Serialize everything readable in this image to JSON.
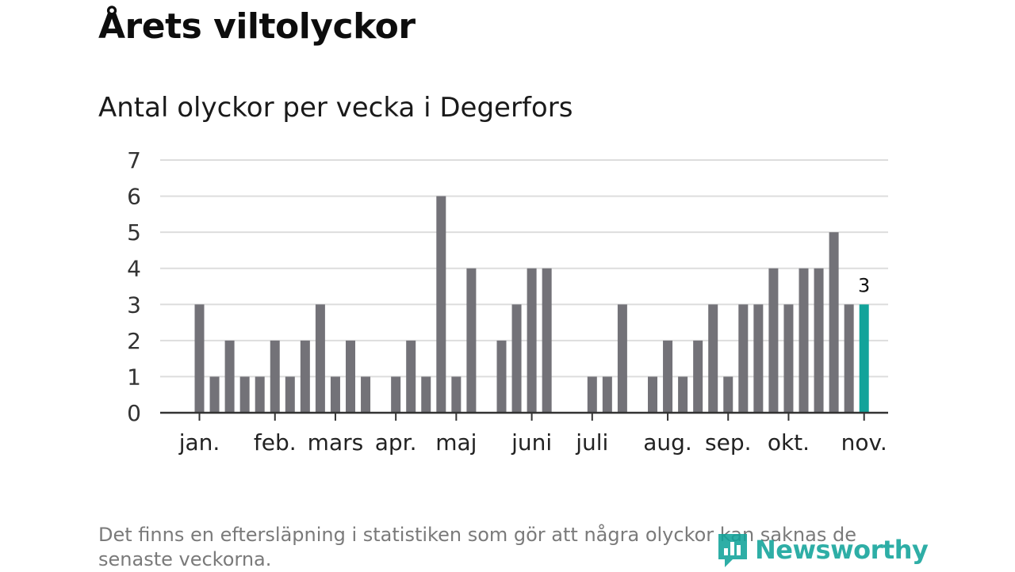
{
  "title": "Årets viltolyckor",
  "subtitle": "Antal olyckor per vecka i Degerfors",
  "footnote": "Det finns en eftersläpning i statistiken som gör att några olyckor kan saknas de senaste veckorna.",
  "brand": {
    "name": "Newsworthy",
    "color": "#12a39a",
    "icon": "chart-logo-icon"
  },
  "colors": {
    "bar": "#737278",
    "highlight": "#12a39a",
    "grid": "#dddddd",
    "axis": "#333333"
  },
  "chart_data": {
    "type": "bar",
    "ylim": [
      0,
      7
    ],
    "yticks": [
      0,
      1,
      2,
      3,
      4,
      5,
      6,
      7
    ],
    "grid": true,
    "legend": "none",
    "x": [
      "2023-01-02",
      "2023-01-09",
      "2023-01-16",
      "2023-01-23",
      "2023-01-30",
      "2023-02-06",
      "2023-02-13",
      "2023-02-20",
      "2023-02-27",
      "2023-03-06",
      "2023-03-13",
      "2023-03-20",
      "2023-03-27",
      "2023-04-03",
      "2023-04-10",
      "2023-04-17",
      "2023-04-24",
      "2023-05-01",
      "2023-05-08",
      "2023-05-15",
      "2023-05-22",
      "2023-05-29",
      "2023-06-05",
      "2023-06-12",
      "2023-06-19",
      "2023-06-26",
      "2023-07-03",
      "2023-07-10",
      "2023-07-17",
      "2023-07-24",
      "2023-07-31",
      "2023-08-07",
      "2023-08-14",
      "2023-08-21",
      "2023-08-28",
      "2023-09-04",
      "2023-09-11",
      "2023-09-18",
      "2023-09-25",
      "2023-10-02",
      "2023-10-09",
      "2023-10-16",
      "2023-10-23",
      "2023-10-30",
      "2023-11-06"
    ],
    "values": [
      3,
      1,
      2,
      1,
      1,
      2,
      1,
      2,
      3,
      1,
      2,
      1,
      0,
      1,
      2,
      1,
      6,
      1,
      4,
      0,
      2,
      3,
      4,
      4,
      0,
      0,
      1,
      1,
      3,
      0,
      1,
      2,
      1,
      2,
      3,
      1,
      3,
      3,
      4,
      3,
      4,
      4,
      5,
      3,
      3
    ],
    "highlight": {
      "x": "2023-11-06",
      "value": 3,
      "label": "3"
    },
    "month_labels": [
      {
        "label": "jan.",
        "x": "2023-01-02"
      },
      {
        "label": "feb.",
        "x": "2023-02-06"
      },
      {
        "label": "mars",
        "x": "2023-03-06"
      },
      {
        "label": "apr.",
        "x": "2023-04-03"
      },
      {
        "label": "maj",
        "x": "2023-05-01"
      },
      {
        "label": "juni",
        "x": "2023-06-05"
      },
      {
        "label": "juli",
        "x": "2023-07-03"
      },
      {
        "label": "aug.",
        "x": "2023-08-07"
      },
      {
        "label": "sep.",
        "x": "2023-09-04"
      },
      {
        "label": "okt.",
        "x": "2023-10-02"
      },
      {
        "label": "nov.",
        "x": "2023-11-06"
      }
    ]
  }
}
